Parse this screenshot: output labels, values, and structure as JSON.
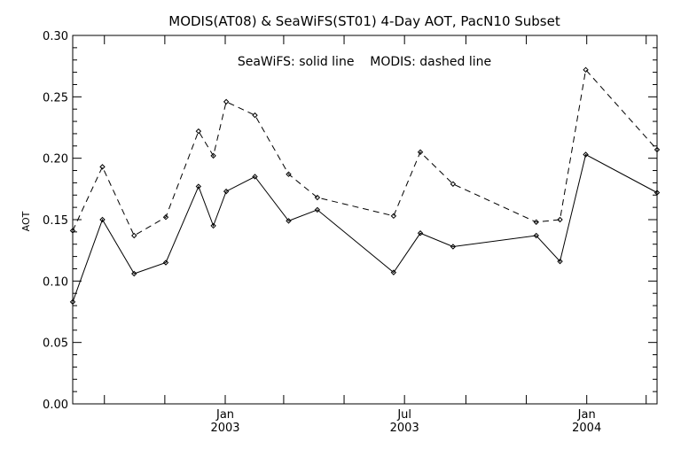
{
  "chart_data": {
    "type": "line",
    "title": "MODIS(AT08) & SeaWiFS(ST01) 4-Day AOT, PacN10 Subset",
    "legend_text": "SeaWiFS: solid line    MODIS: dashed line",
    "xlabel": "",
    "ylabel": "AOT",
    "ylim": [
      0,
      0.3
    ],
    "xlim": [
      "2002-07-31",
      "2004-03-12"
    ],
    "grid": false,
    "y_ticks": [
      "0.00",
      "0.05",
      "0.10",
      "0.15",
      "0.20",
      "0.25",
      "0.30"
    ],
    "x_tick_labels": [
      {
        "date": "2003-01-01",
        "line1": "Jan",
        "line2": "2003"
      },
      {
        "date": "2003-07-01",
        "line1": "Jul",
        "line2": "2003"
      },
      {
        "date": "2004-01-01",
        "line1": "Jan",
        "line2": "2004"
      }
    ],
    "x_minor_ticks": [
      "2002-09-01",
      "2002-11-01",
      "2003-01-01",
      "2003-03-01",
      "2003-05-01",
      "2003-07-01",
      "2003-09-01",
      "2003-11-01",
      "2004-01-01",
      "2004-03-01"
    ],
    "series": [
      {
        "name": "SeaWiFS",
        "style": "solid",
        "points": [
          {
            "x": "2002-07-31",
            "y": 0.083
          },
          {
            "x": "2002-08-30",
            "y": 0.15
          },
          {
            "x": "2002-10-01",
            "y": 0.106
          },
          {
            "x": "2002-11-02",
            "y": 0.115
          },
          {
            "x": "2002-12-05",
            "y": 0.177
          },
          {
            "x": "2002-12-20",
            "y": 0.145
          },
          {
            "x": "2003-01-02",
            "y": 0.173
          },
          {
            "x": "2003-01-31",
            "y": 0.185
          },
          {
            "x": "2003-03-06",
            "y": 0.149
          },
          {
            "x": "2003-04-04",
            "y": 0.158
          },
          {
            "x": "2003-06-20",
            "y": 0.107
          },
          {
            "x": "2003-07-17",
            "y": 0.139
          },
          {
            "x": "2003-08-19",
            "y": 0.128
          },
          {
            "x": "2003-11-11",
            "y": 0.137
          },
          {
            "x": "2003-12-05",
            "y": 0.116
          },
          {
            "x": "2003-12-31",
            "y": 0.203
          },
          {
            "x": "2004-03-12",
            "y": 0.172
          }
        ]
      },
      {
        "name": "MODIS",
        "style": "dashed",
        "points": [
          {
            "x": "2002-07-31",
            "y": 0.141
          },
          {
            "x": "2002-08-30",
            "y": 0.193
          },
          {
            "x": "2002-10-01",
            "y": 0.137
          },
          {
            "x": "2002-11-02",
            "y": 0.152
          },
          {
            "x": "2002-12-05",
            "y": 0.222
          },
          {
            "x": "2002-12-20",
            "y": 0.202
          },
          {
            "x": "2003-01-02",
            "y": 0.246
          },
          {
            "x": "2003-01-31",
            "y": 0.235
          },
          {
            "x": "2003-03-06",
            "y": 0.187
          },
          {
            "x": "2003-04-04",
            "y": 0.168
          },
          {
            "x": "2003-06-20",
            "y": 0.153
          },
          {
            "x": "2003-07-17",
            "y": 0.205
          },
          {
            "x": "2003-08-19",
            "y": 0.179
          },
          {
            "x": "2003-11-11",
            "y": 0.148
          },
          {
            "x": "2003-12-05",
            "y": 0.15
          },
          {
            "x": "2003-12-31",
            "y": 0.272
          },
          {
            "x": "2004-03-12",
            "y": 0.207
          }
        ]
      }
    ],
    "colors": {
      "axes": "#000000",
      "series": "#000000",
      "background": "#ffffff"
    }
  }
}
